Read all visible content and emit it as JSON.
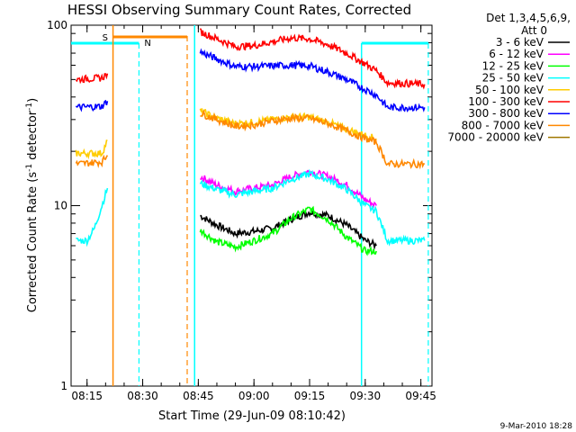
{
  "chart_data": {
    "type": "line",
    "title": "HESSI Observing Summary Count Rates, Corrected",
    "xlabel": "Start Time (29-Jun-09 08:10:42)",
    "ylabel_main": "Corrected Count Rate (s",
    "ylabel_sup1": "-1",
    "ylabel_mid": " detector",
    "ylabel_sup2": "-1",
    "ylabel_end": ")",
    "ylim": [
      1,
      100
    ],
    "yscale": "log",
    "xlim_minutes": [
      8.1667,
      9.8
    ],
    "x_ticks": [
      "08:15",
      "08:30",
      "08:45",
      "09:00",
      "09:15",
      "09:30",
      "09:45"
    ],
    "y_ticks": [
      "1",
      "10",
      "100"
    ],
    "grid": false,
    "legend_header_1": "Det 1,3,4,5,6,9,",
    "legend_header_2": "Att 0",
    "legend_placement": "right",
    "footer_date": "9-Mar-2010 18:28",
    "markers": {
      "s_label": "S",
      "n_label": "N",
      "saa_start": "08:22",
      "saa_end": "08:42",
      "night_start": "08:29",
      "night_end": "08:44",
      "day_start": "09:29",
      "day_end": "09:47"
    },
    "series": [
      {
        "name": "3 - 6 keV",
        "color": "#000000",
        "pts": [
          [
            "08:45.5",
            8.8
          ],
          [
            "08:50",
            7.8
          ],
          [
            "08:55",
            7.0
          ],
          [
            "09:00",
            7.2
          ],
          [
            "09:05",
            7.5
          ],
          [
            "09:10",
            8.4
          ],
          [
            "09:15",
            9.2
          ],
          [
            "09:20",
            8.8
          ],
          [
            "09:25",
            7.8
          ],
          [
            "09:30",
            6.4
          ],
          [
            "09:33",
            6.0
          ]
        ]
      },
      {
        "name": "6 - 12 keV",
        "color": "#ff00ff",
        "pts": [
          [
            "08:45.5",
            14.5
          ],
          [
            "08:50",
            13.0
          ],
          [
            "08:55",
            12.0
          ],
          [
            "09:00",
            12.5
          ],
          [
            "09:05",
            13.0
          ],
          [
            "09:10",
            14.5
          ],
          [
            "09:15",
            15.5
          ],
          [
            "09:20",
            14.5
          ],
          [
            "09:25",
            13.0
          ],
          [
            "09:30",
            10.8
          ],
          [
            "09:33",
            10.0
          ]
        ]
      },
      {
        "name": "12 - 25 keV",
        "color": "#00ff00",
        "pts": [
          [
            "08:45.5",
            7.3
          ],
          [
            "08:50",
            6.3
          ],
          [
            "08:55",
            5.9
          ],
          [
            "09:00",
            6.4
          ],
          [
            "09:05",
            7.0
          ],
          [
            "09:10",
            8.5
          ],
          [
            "09:15",
            9.6
          ],
          [
            "09:20",
            8.4
          ],
          [
            "09:25",
            6.7
          ],
          [
            "09:30",
            5.6
          ],
          [
            "09:33",
            5.6
          ]
        ]
      },
      {
        "name": "25 - 50 keV",
        "color": "#00ffff",
        "pts": [
          [
            "08:12",
            6.4
          ],
          [
            "08:15",
            6.4
          ],
          [
            "08:17",
            7.5
          ],
          [
            "08:19",
            10.0
          ],
          [
            "08:20.5",
            12.5
          ],
          [
            "08:45.5",
            13.3
          ],
          [
            "08:50",
            12.3
          ],
          [
            "08:55",
            11.5
          ],
          [
            "09:00",
            12.0
          ],
          [
            "09:05",
            12.5
          ],
          [
            "09:10",
            14.0
          ],
          [
            "09:15",
            15.0
          ],
          [
            "09:20",
            14.0
          ],
          [
            "09:25",
            12.3
          ],
          [
            "09:30",
            10.0
          ],
          [
            "09:33",
            9.3
          ],
          [
            "09:36",
            6.4
          ],
          [
            "09:46",
            6.4
          ]
        ]
      },
      {
        "name": "50 - 100 keV",
        "color": "#ffcc00",
        "pts": [
          [
            "08:12",
            19.5
          ],
          [
            "08:19",
            19.5
          ],
          [
            "08:20.5",
            23.0
          ],
          [
            "08:45.5",
            33.5
          ],
          [
            "08:50",
            30.5
          ],
          [
            "08:55",
            28.5
          ],
          [
            "09:00",
            29.0
          ],
          [
            "09:05",
            30.0
          ],
          [
            "09:10",
            31.0
          ],
          [
            "09:15",
            31.0
          ],
          [
            "09:20",
            29.0
          ],
          [
            "09:25",
            26.5
          ],
          [
            "09:30",
            24.5
          ],
          [
            "09:33",
            23.5
          ]
        ]
      },
      {
        "name": "100 - 300 keV",
        "color": "#ff0000",
        "pts": [
          [
            "08:12",
            50.0
          ],
          [
            "08:19",
            51.0
          ],
          [
            "08:20.5",
            54.0
          ],
          [
            "08:45.5",
            92.0
          ],
          [
            "08:50",
            84.0
          ],
          [
            "08:55",
            76.0
          ],
          [
            "09:00",
            77.0
          ],
          [
            "09:05",
            81.0
          ],
          [
            "09:10",
            85.0
          ],
          [
            "09:15",
            84.0
          ],
          [
            "09:20",
            78.0
          ],
          [
            "09:25",
            70.0
          ],
          [
            "09:30",
            61.0
          ],
          [
            "09:33",
            56.0
          ],
          [
            "09:36",
            48.0
          ],
          [
            "09:46",
            47.0
          ]
        ]
      },
      {
        "name": "300 - 800 keV",
        "color": "#0000ff",
        "pts": [
          [
            "08:12",
            35.0
          ],
          [
            "08:19",
            35.5
          ],
          [
            "08:20.5",
            38.0
          ],
          [
            "08:45.5",
            71.0
          ],
          [
            "08:50",
            65.0
          ],
          [
            "08:55",
            59.0
          ],
          [
            "09:00",
            59.0
          ],
          [
            "09:05",
            59.5
          ],
          [
            "09:10",
            60.0
          ],
          [
            "09:15",
            59.5
          ],
          [
            "09:20",
            55.0
          ],
          [
            "09:25",
            50.0
          ],
          [
            "09:30",
            44.0
          ],
          [
            "09:33",
            41.0
          ],
          [
            "09:36",
            35.0
          ],
          [
            "09:46",
            35.0
          ]
        ]
      },
      {
        "name": "800 - 7000 keV",
        "color": "#ff8800",
        "pts": [
          [
            "08:12",
            17.0
          ],
          [
            "08:19",
            17.5
          ],
          [
            "08:20.5",
            19.0
          ],
          [
            "08:45.5",
            32.5
          ],
          [
            "08:50",
            30.0
          ],
          [
            "08:55",
            27.5
          ],
          [
            "09:00",
            28.0
          ],
          [
            "09:05",
            29.5
          ],
          [
            "09:10",
            30.5
          ],
          [
            "09:15",
            30.5
          ],
          [
            "09:20",
            28.5
          ],
          [
            "09:25",
            26.0
          ],
          [
            "09:30",
            23.5
          ],
          [
            "09:33",
            22.5
          ],
          [
            "09:36",
            17.0
          ],
          [
            "09:46",
            17.0
          ]
        ]
      },
      {
        "name": "7000 - 20000 keV",
        "color": "#a07800",
        "pts": []
      }
    ]
  }
}
